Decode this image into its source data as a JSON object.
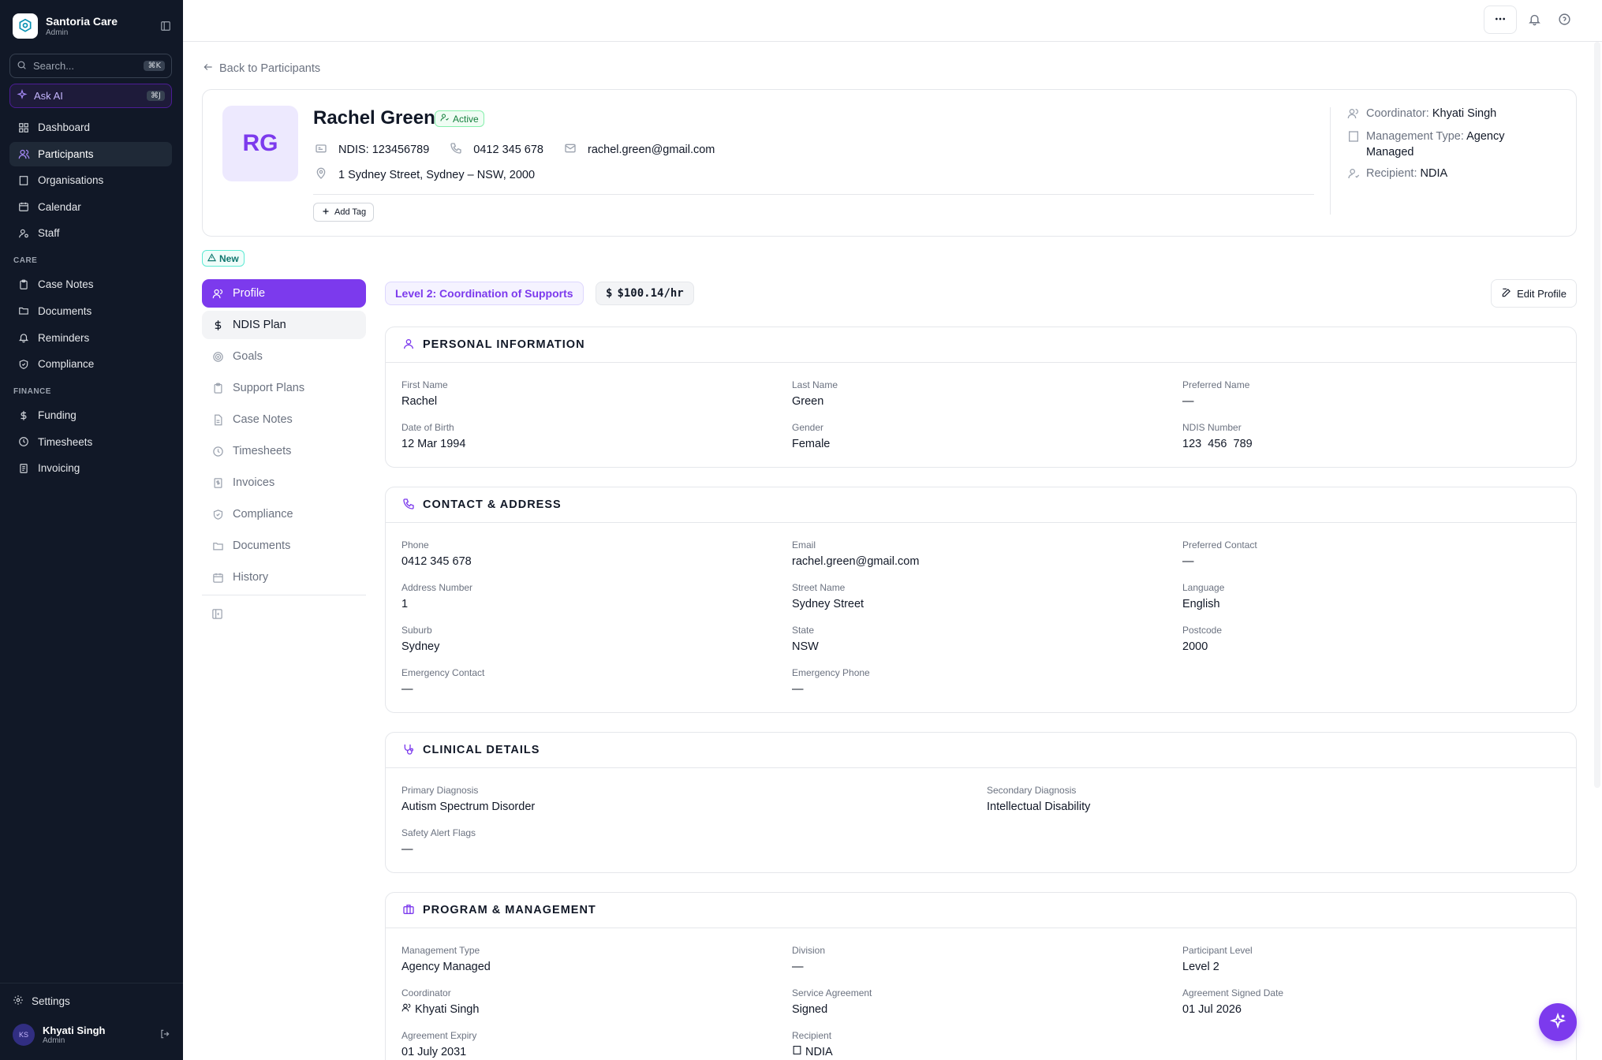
{
  "brand": {
    "name": "Santoria Care",
    "role": "Admin"
  },
  "search": {
    "placeholder": "Search...",
    "shortcut": "⌘K"
  },
  "ask_ai": {
    "label": "Ask AI",
    "shortcut": "⌘J"
  },
  "nav": {
    "main": [
      {
        "label": "Dashboard",
        "icon": "dashboard-icon"
      },
      {
        "label": "Participants",
        "icon": "users-icon",
        "active": true
      },
      {
        "label": "Organisations",
        "icon": "building-icon"
      },
      {
        "label": "Calendar",
        "icon": "calendar-icon"
      },
      {
        "label": "Staff",
        "icon": "user-cog-icon"
      }
    ],
    "care_label": "CARE",
    "care": [
      {
        "label": "Case Notes",
        "icon": "clipboard-icon"
      },
      {
        "label": "Documents",
        "icon": "folder-icon"
      },
      {
        "label": "Reminders",
        "icon": "bell-icon"
      },
      {
        "label": "Compliance",
        "icon": "shield-check-icon"
      }
    ],
    "finance_label": "FINANCE",
    "finance": [
      {
        "label": "Funding",
        "icon": "dollar-icon"
      },
      {
        "label": "Timesheets",
        "icon": "clock-icon"
      },
      {
        "label": "Invoicing",
        "icon": "receipt-icon"
      }
    ],
    "settings_label": "Settings"
  },
  "user": {
    "initials": "KS",
    "name": "Khyati Singh",
    "role": "Admin"
  },
  "back_label": "Back to Participants",
  "participant": {
    "initials": "RG",
    "name": "Rachel Green",
    "status": "Active",
    "ndis": "NDIS: 123456789",
    "phone": "0412 345 678",
    "email": "rachel.green@gmail.com",
    "address": "1 Sydney Street, Sydney – NSW, 2000",
    "add_tag": "Add Tag",
    "coordinator_label": "Coordinator:",
    "coordinator": "Khyati Singh",
    "management_label": "Management Type:",
    "management": "Agency",
    "management_cont": "Managed",
    "recipient_label": "Recipient:",
    "recipient": "NDIA",
    "new_badge": "New"
  },
  "tabs": [
    {
      "label": "Profile",
      "icon": "user-group-icon",
      "active": true
    },
    {
      "label": "NDIS Plan",
      "icon": "dollar-icon",
      "hover": true
    },
    {
      "label": "Goals",
      "icon": "target-icon"
    },
    {
      "label": "Support Plans",
      "icon": "clipboard-icon"
    },
    {
      "label": "Case Notes",
      "icon": "file-text-icon"
    },
    {
      "label": "Timesheets",
      "icon": "clock-icon"
    },
    {
      "label": "Invoices",
      "icon": "receipt-icon"
    },
    {
      "label": "Compliance",
      "icon": "shield-check-icon"
    },
    {
      "label": "Documents",
      "icon": "folder-icon"
    },
    {
      "label": "History",
      "icon": "calendar-icon"
    }
  ],
  "level_pill": "Level 2: Coordination of Supports",
  "rate_pill": "$100.14/hr",
  "rate_symbol": "$",
  "edit_profile": "Edit Profile",
  "sections": {
    "personal": {
      "title": "PERSONAL INFORMATION",
      "fields": [
        {
          "label": "First Name",
          "value": "Rachel"
        },
        {
          "label": "Last Name",
          "value": "Green"
        },
        {
          "label": "Preferred Name",
          "value": "—"
        },
        {
          "label": "Date of Birth",
          "value": "12 Mar 1994"
        },
        {
          "label": "Gender",
          "value": "Female"
        },
        {
          "label": "NDIS Number",
          "value": "123  456  789"
        }
      ]
    },
    "contact": {
      "title": "CONTACT & ADDRESS",
      "fields": [
        {
          "label": "Phone",
          "value": "0412 345 678"
        },
        {
          "label": "Email",
          "value": "rachel.green@gmail.com"
        },
        {
          "label": "Preferred Contact",
          "value": "—"
        },
        {
          "label": "Address Number",
          "value": "1"
        },
        {
          "label": "Street Name",
          "value": "Sydney Street"
        },
        {
          "label": "Language",
          "value": "English"
        },
        {
          "label": "Suburb",
          "value": "Sydney"
        },
        {
          "label": "State",
          "value": "NSW"
        },
        {
          "label": "Postcode",
          "value": "2000"
        },
        {
          "label": "Emergency Contact",
          "value": "—"
        },
        {
          "label": "Emergency Phone",
          "value": "—"
        }
      ]
    },
    "clinical": {
      "title": "CLINICAL DETAILS",
      "fields": [
        {
          "label": "Primary Diagnosis",
          "value": "Autism Spectrum Disorder"
        },
        {
          "label": "Secondary Diagnosis",
          "value": "Intellectual Disability"
        },
        {
          "label": "Safety Alert Flags",
          "value": "—"
        }
      ]
    },
    "program": {
      "title": "PROGRAM & MANAGEMENT",
      "fields": [
        {
          "label": "Management Type",
          "value": "Agency Managed"
        },
        {
          "label": "Division",
          "value": "—"
        },
        {
          "label": "Participant Level",
          "value": "Level 2"
        },
        {
          "label": "Coordinator",
          "value": "Khyati Singh"
        },
        {
          "label": "Service Agreement",
          "value": "Signed"
        },
        {
          "label": "Agreement Signed Date",
          "value": "01 Jul 2026"
        },
        {
          "label": "Agreement Expiry",
          "value": "01 July 2031"
        },
        {
          "label": "Recipient",
          "value": "NDIA"
        }
      ]
    }
  },
  "colors": {
    "accent": "#7c3aed",
    "sidebar": "#111827",
    "active_badge": "#15803d",
    "new_badge": "#0f766e"
  }
}
